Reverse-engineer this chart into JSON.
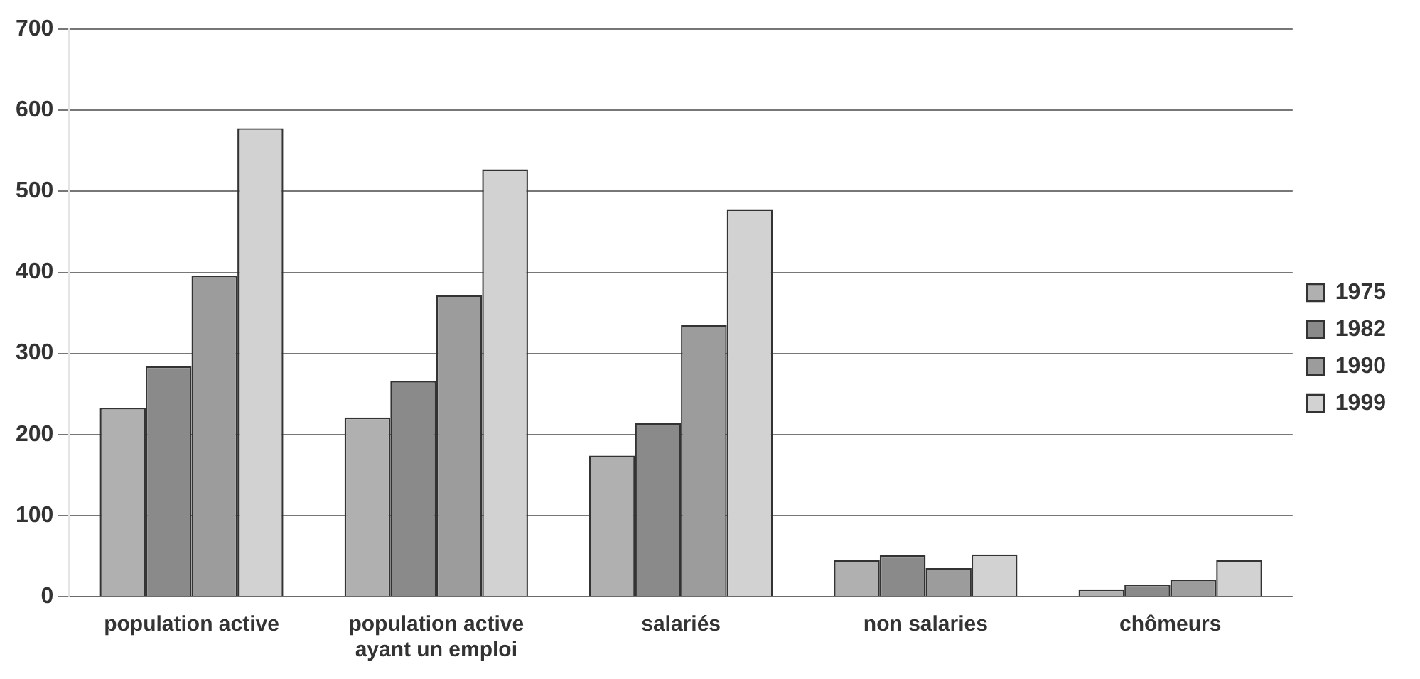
{
  "chart_data": {
    "type": "bar",
    "categories": [
      "population active",
      "population active\nayant un emploi",
      "salariés",
      "non salaries",
      "chômeurs"
    ],
    "series": [
      {
        "name": "1975",
        "color": "#b0b0b0",
        "values": [
          233,
          221,
          174,
          45,
          9
        ]
      },
      {
        "name": "1982",
        "color": "#8a8a8a",
        "values": [
          284,
          266,
          214,
          51,
          15
        ]
      },
      {
        "name": "1990",
        "color": "#9c9c9c",
        "values": [
          396,
          372,
          335,
          35,
          21
        ]
      },
      {
        "name": "1999",
        "color": "#d2d2d2",
        "values": [
          578,
          527,
          478,
          52,
          45
        ]
      }
    ],
    "ylim": [
      0,
      700
    ],
    "yticks": [
      0,
      100,
      200,
      300,
      400,
      500,
      600,
      700
    ],
    "grid": "y",
    "legend": "right"
  }
}
